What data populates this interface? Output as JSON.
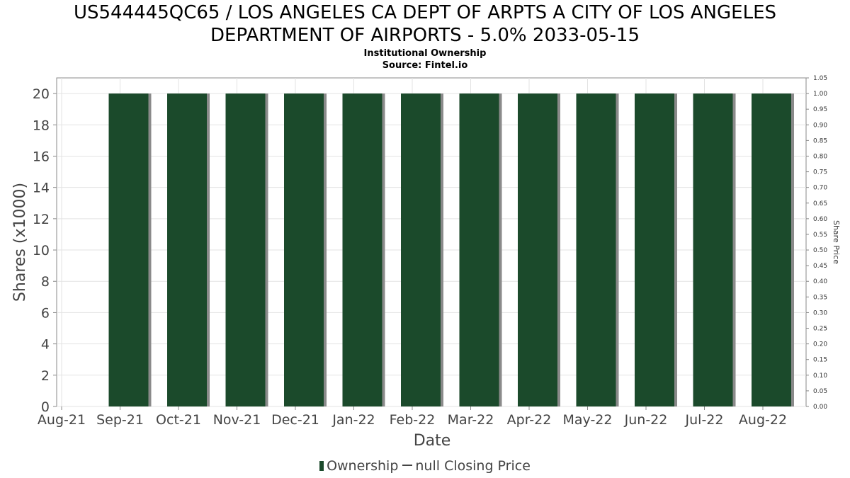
{
  "title_line1": "US544445QC65 / LOS ANGELES CA DEPT OF ARPTS A CITY OF LOS ANGELES",
  "title_line2": "DEPARTMENT OF AIRPORTS - 5.0% 2033-05-15",
  "subtitle": "Institutional Ownership",
  "source": "Source: Fintel.io",
  "legend": {
    "ownership": "Ownership",
    "price": "null Closing Price"
  },
  "colors": {
    "bar": "#1b4a2b",
    "bar_shadow": "#8a8a8a",
    "grid": "#e3e3e3",
    "axis": "#888888"
  },
  "chart_data": {
    "type": "bar",
    "xlabel": "Date",
    "ylabel": "Shares (x1000)",
    "y2label": "Share Price",
    "ylim": [
      0,
      21
    ],
    "y2lim": [
      0,
      1.05
    ],
    "yticks": [
      0,
      2,
      4,
      6,
      8,
      10,
      12,
      14,
      16,
      18,
      20
    ],
    "y2ticks": [
      "0.00",
      "0.05",
      "0.10",
      "0.15",
      "0.20",
      "0.25",
      "0.30",
      "0.35",
      "0.40",
      "0.45",
      "0.50",
      "0.55",
      "0.60",
      "0.65",
      "0.70",
      "0.75",
      "0.80",
      "0.85",
      "0.90",
      "0.95",
      "1.00",
      "1.05"
    ],
    "categories": [
      "Aug-21",
      "Sep-21",
      "Oct-21",
      "Nov-21",
      "Dec-21",
      "Jan-22",
      "Feb-22",
      "Mar-22",
      "Apr-22",
      "May-22",
      "Jun-22",
      "Jul-22",
      "Aug-22"
    ],
    "series": [
      {
        "name": "Ownership",
        "values": [
          null,
          20,
          20,
          20,
          20,
          20,
          20,
          20,
          20,
          20,
          20,
          20,
          20
        ]
      }
    ],
    "grid": true,
    "legend_position": "bottom"
  }
}
